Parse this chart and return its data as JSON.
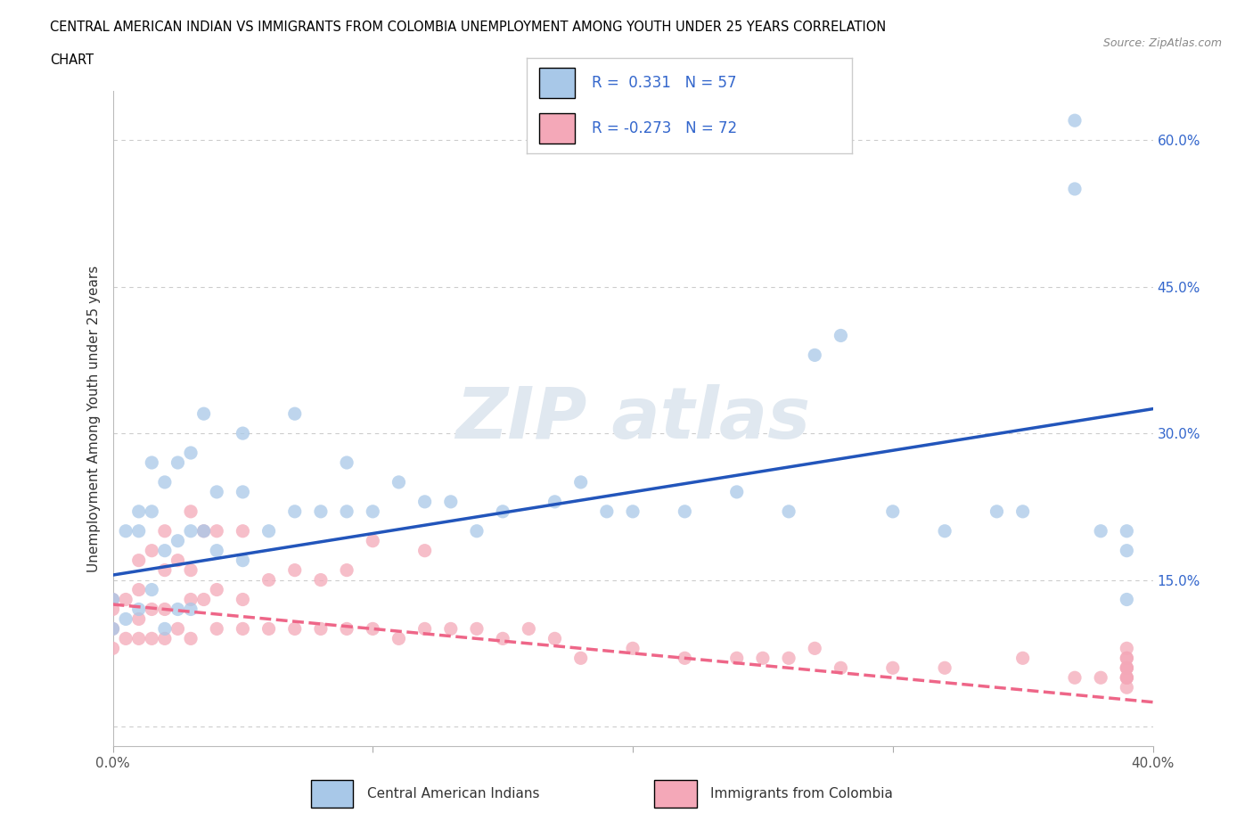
{
  "title_line1": "CENTRAL AMERICAN INDIAN VS IMMIGRANTS FROM COLOMBIA UNEMPLOYMENT AMONG YOUTH UNDER 25 YEARS CORRELATION",
  "title_line2": "CHART",
  "source": "Source: ZipAtlas.com",
  "ylabel": "Unemployment Among Youth under 25 years",
  "xlim": [
    0.0,
    0.4
  ],
  "ylim": [
    -0.02,
    0.65
  ],
  "xticks": [
    0.0,
    0.1,
    0.2,
    0.3,
    0.4
  ],
  "xticklabels": [
    "0.0%",
    "",
    "",
    "",
    "40.0%"
  ],
  "ytick_positions": [
    0.0,
    0.15,
    0.3,
    0.45,
    0.6
  ],
  "ytick_labels": [
    "",
    "15.0%",
    "30.0%",
    "45.0%",
    "60.0%"
  ],
  "r_blue": 0.331,
  "n_blue": 57,
  "r_pink": -0.273,
  "n_pink": 72,
  "blue_color": "#A8C8E8",
  "pink_color": "#F4A8B8",
  "blue_line_color": "#2255BB",
  "pink_line_color": "#EE6688",
  "background_color": "#FFFFFF",
  "grid_color": "#CCCCCC",
  "blue_line_x0": 0.0,
  "blue_line_y0": 0.155,
  "blue_line_x1": 0.4,
  "blue_line_y1": 0.325,
  "pink_line_x0": 0.0,
  "pink_line_y0": 0.125,
  "pink_line_x1": 0.4,
  "pink_line_y1": 0.025,
  "blue_scatter_x": [
    0.0,
    0.0,
    0.005,
    0.005,
    0.01,
    0.01,
    0.01,
    0.015,
    0.015,
    0.015,
    0.02,
    0.02,
    0.02,
    0.025,
    0.025,
    0.025,
    0.03,
    0.03,
    0.03,
    0.035,
    0.035,
    0.04,
    0.04,
    0.05,
    0.05,
    0.05,
    0.06,
    0.07,
    0.07,
    0.08,
    0.09,
    0.09,
    0.1,
    0.11,
    0.12,
    0.13,
    0.14,
    0.15,
    0.17,
    0.18,
    0.19,
    0.2,
    0.22,
    0.24,
    0.26,
    0.27,
    0.28,
    0.3,
    0.32,
    0.34,
    0.35,
    0.37,
    0.37,
    0.38,
    0.39,
    0.39,
    0.39
  ],
  "blue_scatter_y": [
    0.1,
    0.13,
    0.11,
    0.2,
    0.12,
    0.2,
    0.22,
    0.14,
    0.22,
    0.27,
    0.1,
    0.18,
    0.25,
    0.12,
    0.19,
    0.27,
    0.12,
    0.2,
    0.28,
    0.2,
    0.32,
    0.18,
    0.24,
    0.17,
    0.24,
    0.3,
    0.2,
    0.22,
    0.32,
    0.22,
    0.22,
    0.27,
    0.22,
    0.25,
    0.23,
    0.23,
    0.2,
    0.22,
    0.23,
    0.25,
    0.22,
    0.22,
    0.22,
    0.24,
    0.22,
    0.38,
    0.4,
    0.22,
    0.2,
    0.22,
    0.22,
    0.55,
    0.62,
    0.2,
    0.18,
    0.2,
    0.13
  ],
  "pink_scatter_x": [
    0.0,
    0.0,
    0.0,
    0.0,
    0.005,
    0.005,
    0.01,
    0.01,
    0.01,
    0.01,
    0.015,
    0.015,
    0.015,
    0.02,
    0.02,
    0.02,
    0.02,
    0.025,
    0.025,
    0.03,
    0.03,
    0.03,
    0.03,
    0.035,
    0.035,
    0.04,
    0.04,
    0.04,
    0.05,
    0.05,
    0.05,
    0.06,
    0.06,
    0.07,
    0.07,
    0.08,
    0.08,
    0.09,
    0.09,
    0.1,
    0.1,
    0.11,
    0.12,
    0.12,
    0.13,
    0.14,
    0.15,
    0.16,
    0.17,
    0.18,
    0.2,
    0.22,
    0.24,
    0.25,
    0.26,
    0.27,
    0.28,
    0.3,
    0.32,
    0.35,
    0.37,
    0.38,
    0.39,
    0.39,
    0.39,
    0.39,
    0.39,
    0.39,
    0.39,
    0.39,
    0.39,
    0.39
  ],
  "pink_scatter_y": [
    0.08,
    0.1,
    0.12,
    0.13,
    0.09,
    0.13,
    0.09,
    0.11,
    0.14,
    0.17,
    0.09,
    0.12,
    0.18,
    0.09,
    0.12,
    0.16,
    0.2,
    0.1,
    0.17,
    0.09,
    0.13,
    0.16,
    0.22,
    0.13,
    0.2,
    0.1,
    0.14,
    0.2,
    0.1,
    0.13,
    0.2,
    0.1,
    0.15,
    0.1,
    0.16,
    0.1,
    0.15,
    0.1,
    0.16,
    0.1,
    0.19,
    0.09,
    0.1,
    0.18,
    0.1,
    0.1,
    0.09,
    0.1,
    0.09,
    0.07,
    0.08,
    0.07,
    0.07,
    0.07,
    0.07,
    0.08,
    0.06,
    0.06,
    0.06,
    0.07,
    0.05,
    0.05,
    0.04,
    0.05,
    0.06,
    0.06,
    0.05,
    0.07,
    0.06,
    0.05,
    0.07,
    0.08
  ]
}
